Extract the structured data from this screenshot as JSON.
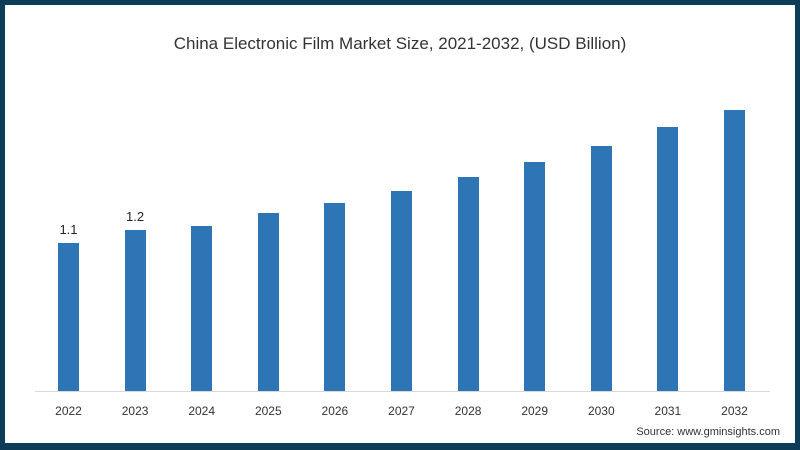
{
  "chart_data": {
    "type": "bar",
    "title": "China Electronic Film Market Size, 2021-2032, (USD Billion)",
    "xlabel": "",
    "ylabel": "",
    "categories": [
      "2022",
      "2023",
      "2024",
      "2025",
      "2026",
      "2027",
      "2028",
      "2029",
      "2030",
      "2031",
      "2032"
    ],
    "values": [
      1.1,
      1.2,
      1.23,
      1.32,
      1.4,
      1.49,
      1.59,
      1.7,
      1.82,
      1.96,
      2.09
    ],
    "data_labels": {
      "2022": "1.1",
      "2023": "1.2"
    },
    "ylim": [
      0,
      2.2
    ],
    "grid": false,
    "legend": null,
    "bar_color": "#2e75b6",
    "source": "Source: www.gminsights.com"
  },
  "border_color": "#0d3d56"
}
